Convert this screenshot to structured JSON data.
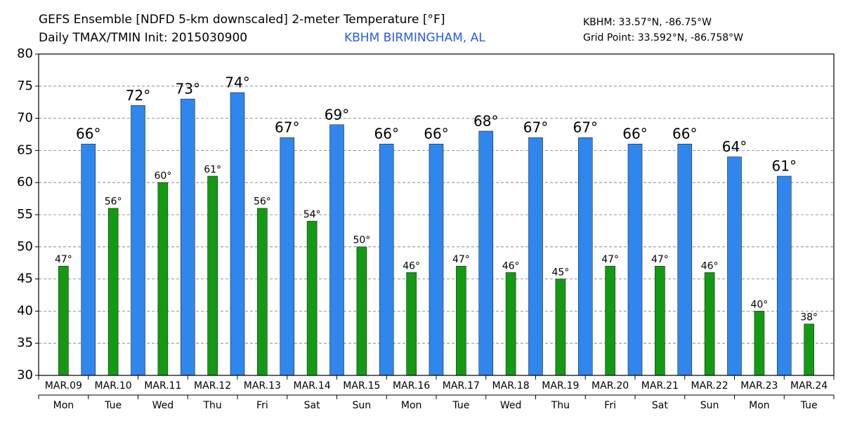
{
  "chart_data": {
    "type": "bar",
    "title": "GEFS Ensemble [NDFD 5-km downscaled] 2-meter Temperature [°F]",
    "subtitle": "Daily TMAX/TMIN Init: 2015030900",
    "station": "KBHM BIRMINGHAM, AL",
    "station_coords": "KBHM: 33.57°N, -86.75°W",
    "grid_point": "Grid Point: 33.592°N, -86.758°W",
    "categories": [
      "MAR.09",
      "MAR.10",
      "MAR.11",
      "MAR.12",
      "MAR.13",
      "MAR.14",
      "MAR.15",
      "MAR.16",
      "MAR.17",
      "MAR.18",
      "MAR.19",
      "MAR.20",
      "MAR.21",
      "MAR.22",
      "MAR.23",
      "MAR.24"
    ],
    "weekdays": [
      "Mon",
      "Tue",
      "Wed",
      "Thu",
      "Fri",
      "Sat",
      "Sun",
      "Mon",
      "Tue",
      "Wed",
      "Thu",
      "Fri",
      "Sat",
      "Sun",
      "Mon",
      "Tue"
    ],
    "series": [
      {
        "color": "#139a13",
        "values": [
          47,
          56,
          60,
          61,
          56,
          54,
          50,
          46,
          47,
          46,
          45,
          47,
          47,
          46,
          40,
          38
        ],
        "value_labels": [
          "47°",
          "56°",
          "60°",
          "61°",
          "56°",
          "54°",
          "50°",
          "46°",
          "47°",
          "46°",
          "45°",
          "47°",
          "47°",
          "46°",
          "40°",
          "38°"
        ]
      },
      {
        "color": "#2f87ee",
        "values": [
          66,
          72,
          73,
          74,
          67,
          69,
          66,
          66,
          68,
          67,
          67,
          66,
          66,
          64,
          61,
          null
        ],
        "value_labels": [
          "66°",
          "72°",
          "73°",
          "74°",
          "67°",
          "69°",
          "66°",
          "66°",
          "68°",
          "67°",
          "67°",
          "66°",
          "66°",
          "64°",
          "61°",
          null
        ]
      }
    ],
    "ylim": [
      30,
      80
    ],
    "yticks": [
      30,
      35,
      40,
      45,
      50,
      55,
      60,
      65,
      70,
      75,
      80
    ],
    "grid": true
  }
}
